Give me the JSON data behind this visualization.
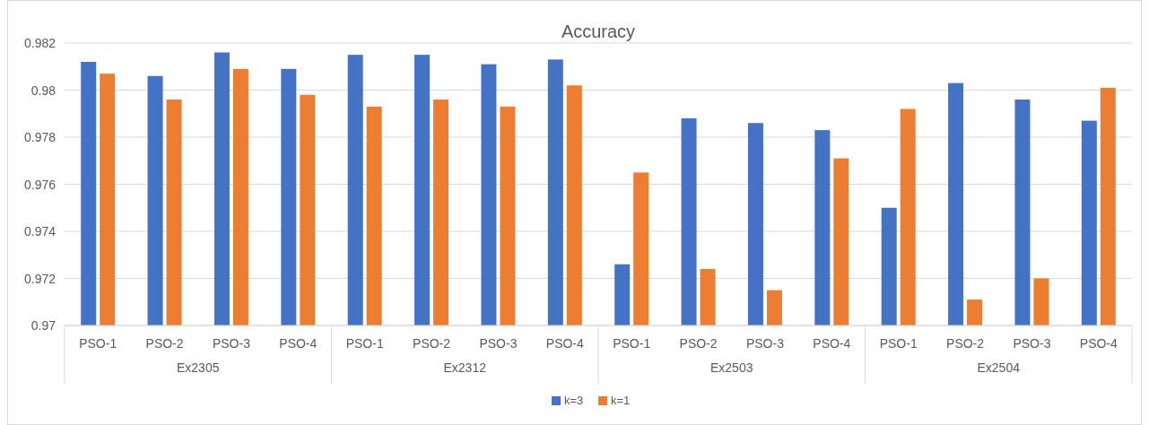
{
  "chart_data": {
    "type": "bar",
    "title": "Accuracy",
    "categories": [
      "PSO-1",
      "PSO-2",
      "PSO-3",
      "PSO-4",
      "PSO-1",
      "PSO-2",
      "PSO-3",
      "PSO-4",
      "PSO-1",
      "PSO-2",
      "PSO-3",
      "PSO-4",
      "PSO-1",
      "PSO-2",
      "PSO-3",
      "PSO-4"
    ],
    "annotations": [
      "Ex2305",
      "Ex2312",
      "Ex2503",
      "Ex2504"
    ],
    "series": [
      {
        "name": "k=3",
        "color": "#4472c4",
        "values": [
          0.9812,
          0.9806,
          0.9816,
          0.9809,
          0.9815,
          0.9815,
          0.9811,
          0.9813,
          0.9726,
          0.9788,
          0.9786,
          0.9783,
          0.975,
          0.9803,
          0.9796,
          0.9787
        ]
      },
      {
        "name": "k=1",
        "color": "#ed7d31",
        "values": [
          0.9807,
          0.9796,
          0.9809,
          0.9798,
          0.9793,
          0.9796,
          0.9793,
          0.9802,
          0.9765,
          0.9724,
          0.9715,
          0.9771,
          0.9792,
          0.9711,
          0.972,
          0.9801
        ]
      }
    ],
    "ylim": [
      0.97,
      0.982
    ],
    "yticks": [
      0.97,
      0.972,
      0.974,
      0.976,
      0.978,
      0.98,
      0.982
    ],
    "grid": "y",
    "legend": "bottom"
  }
}
